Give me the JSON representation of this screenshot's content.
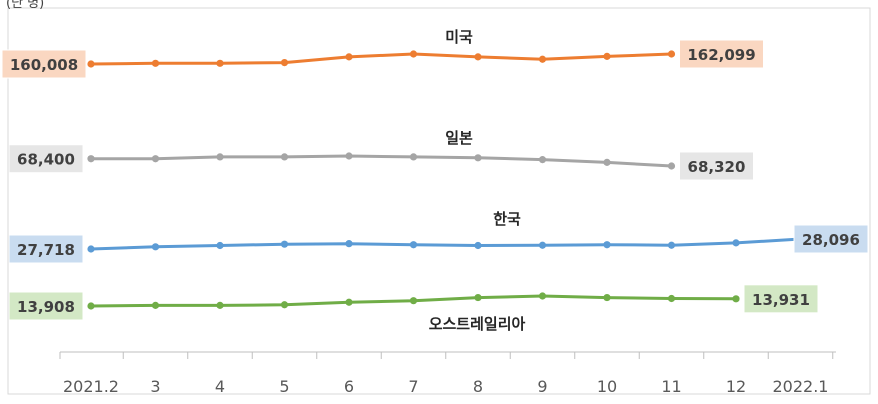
{
  "unit_label": "(단 명)",
  "chart_data": {
    "type": "line",
    "x": [
      "2021.2",
      "3",
      "4",
      "5",
      "6",
      "7",
      "8",
      "9",
      "10",
      "11",
      "12",
      "2022.1"
    ],
    "grid": false,
    "legend": "none",
    "series": [
      {
        "name": "미국",
        "color": "#ED7D31",
        "values": [
          160008,
          160150,
          160150,
          160300,
          161500,
          162100,
          161500,
          161000,
          161600,
          162099,
          null,
          null
        ],
        "start_label": "160,008",
        "end_label": "162,099",
        "label_fill": "#FAD7C1"
      },
      {
        "name": "일본",
        "color": "#A5A5A5",
        "values": [
          68400,
          68400,
          68420,
          68420,
          68430,
          68420,
          68410,
          68390,
          68360,
          68320,
          null,
          null
        ],
        "start_label": "68,400",
        "end_label": "68,320",
        "label_fill": "#E6E6E6"
      },
      {
        "name": "한국",
        "color": "#5B9BD5",
        "values": [
          27718,
          27800,
          27850,
          27900,
          27920,
          27880,
          27850,
          27860,
          27880,
          27860,
          27950,
          28096
        ],
        "start_label": "27,718",
        "end_label": "28,096",
        "label_fill": "#C9DCF0"
      },
      {
        "name": "오스트레일리아",
        "color": "#70AD47",
        "values": [
          13908,
          13910,
          13910,
          13912,
          13920,
          13925,
          13935,
          13940,
          13935,
          13932,
          13931,
          null
        ],
        "start_label": "13,908",
        "end_label": "13,931",
        "label_fill": "#D3E8C5"
      }
    ]
  }
}
